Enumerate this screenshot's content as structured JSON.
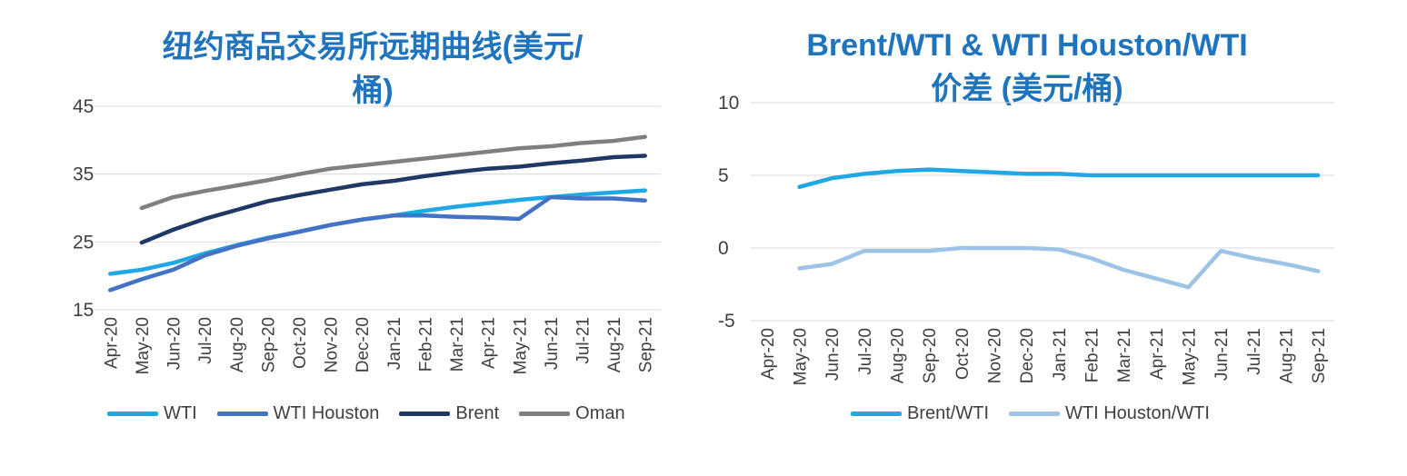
{
  "chart_data": [
    {
      "type": "line",
      "title": "纽约商品交易所远期曲线(美元/桶)",
      "title_lines": [
        "纽约商品交易所远期曲线(美元/",
        "桶)"
      ],
      "categories": [
        "Apr-20",
        "May-20",
        "Jun-20",
        "Jul-20",
        "Aug-20",
        "Sep-20",
        "Oct-20",
        "Nov-20",
        "Dec-20",
        "Jan-21",
        "Feb-21",
        "Mar-21",
        "Apr-21",
        "May-21",
        "Jun-21",
        "Jul-21",
        "Aug-21",
        "Sep-21"
      ],
      "y_ticks": [
        "45",
        "35",
        "25",
        "15"
      ],
      "ylim": [
        15,
        45
      ],
      "grid": true,
      "legend_position": "bottom",
      "series": [
        {
          "name": "WTI",
          "color": "#1fa7e6",
          "values": [
            20.3,
            20.9,
            21.9,
            23.3,
            24.5,
            25.6,
            26.5,
            27.5,
            28.3,
            28.9,
            29.6,
            30.2,
            30.7,
            31.2,
            31.6,
            32.0,
            32.3,
            32.6
          ]
        },
        {
          "name": "WTI Houston",
          "color": "#4472c4",
          "values": [
            17.9,
            19.5,
            20.9,
            23.0,
            24.4,
            25.5,
            26.5,
            27.5,
            28.3,
            28.9,
            28.9,
            28.7,
            28.6,
            28.4,
            31.6,
            31.4,
            31.4,
            31.1
          ]
        },
        {
          "name": "Brent",
          "color": "#203864",
          "values": [
            null,
            24.9,
            26.8,
            28.4,
            29.7,
            31.0,
            31.9,
            32.7,
            33.5,
            34.0,
            34.7,
            35.3,
            35.8,
            36.1,
            36.6,
            37.0,
            37.5,
            37.7
          ]
        },
        {
          "name": "Oman",
          "color": "#7f7f7f",
          "values": [
            null,
            30.0,
            31.6,
            32.5,
            33.3,
            34.1,
            35.0,
            35.8,
            36.3,
            36.8,
            37.3,
            37.8,
            38.3,
            38.8,
            39.1,
            39.6,
            39.9,
            40.5
          ]
        }
      ]
    },
    {
      "type": "line",
      "title": "Brent/WTI & WTI Houston/WTI 价差 (美元/桶)",
      "title_lines": [
        "Brent/WTI & WTI Houston/WTI",
        "价差 (美元/桶)"
      ],
      "categories": [
        "Apr-20",
        "May-20",
        "Jun-20",
        "Jul-20",
        "Aug-20",
        "Sep-20",
        "Oct-20",
        "Nov-20",
        "Dec-20",
        "Jan-21",
        "Feb-21",
        "Mar-21",
        "Apr-21",
        "May-21",
        "Jun-21",
        "Jul-21",
        "Aug-21",
        "Sep-21"
      ],
      "y_ticks": [
        "10",
        "5",
        "0",
        "-5"
      ],
      "ylim": [
        -5,
        10
      ],
      "grid": true,
      "legend_position": "bottom",
      "series": [
        {
          "name": "Brent/WTI",
          "color": "#1fa7e6",
          "values": [
            null,
            4.2,
            4.8,
            5.1,
            5.3,
            5.4,
            5.3,
            5.2,
            5.1,
            5.1,
            5.0,
            5.0,
            5.0,
            5.0,
            5.0,
            5.0,
            5.0,
            5.0
          ]
        },
        {
          "name": "WTI Houston/WTI",
          "color": "#9dc3e6",
          "values": [
            null,
            -1.4,
            -1.1,
            -0.2,
            -0.2,
            -0.2,
            0.0,
            0.0,
            0.0,
            -0.1,
            -0.7,
            -1.5,
            -2.1,
            -2.7,
            -0.2,
            -0.7,
            -1.1,
            -1.6
          ]
        }
      ]
    }
  ]
}
